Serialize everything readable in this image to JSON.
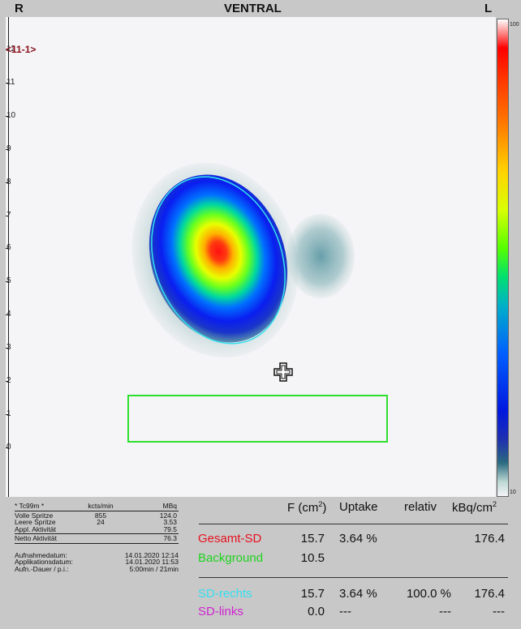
{
  "header": {
    "left": "R",
    "title": "VENTRAL",
    "right": "L"
  },
  "image": {
    "marker": "<11-1>",
    "y_ticks": [
      "12",
      "11",
      "10",
      "9",
      "8",
      "7",
      "6",
      "5",
      "4",
      "3",
      "2",
      "1",
      "0"
    ],
    "colorbar_top_label": "100",
    "colorbar_bottom_label": "10"
  },
  "acquisition": {
    "isotope": "* Tc99m *",
    "col_kcts": "kcts/min",
    "col_mbq": "MBq",
    "rows": [
      {
        "label": "Volle Spritze",
        "kcts": "855",
        "mbq": "124.0"
      },
      {
        "label": "Leere Spritze",
        "kcts": "24",
        "mbq": "3.53"
      },
      {
        "label": "Appl. Aktivität",
        "kcts": "",
        "mbq": "79.5"
      },
      {
        "label": "Netto Aktivität",
        "kcts": "",
        "mbq": "76.3"
      }
    ],
    "dates": [
      {
        "label": "Aufnahmedatum:",
        "value": "14.01.2020 12:14"
      },
      {
        "label": "Applikationsdatum:",
        "value": "14.01.2020 11:53"
      },
      {
        "label": "Aufn.-Dauer / p.i.:",
        "value": "5:00min / 21min"
      }
    ]
  },
  "results": {
    "headers": {
      "f": "F (cm",
      "f_sup": "2",
      "f_close": ")",
      "uptake": "Uptake",
      "relativ": "relativ",
      "kbq": "kBq/cm",
      "kbq_sup": "2"
    },
    "rows": [
      {
        "label": "Gesamt-SD",
        "color": "#e8101e",
        "f": "15.7",
        "uptake": "3.64 %",
        "relativ": "",
        "kbq": "176.4"
      },
      {
        "label": "Background",
        "color": "#1ed31e",
        "f": "10.5",
        "uptake": "",
        "relativ": "",
        "kbq": ""
      },
      {
        "label": "SD-rechts",
        "color": "#33e0f0",
        "f": "15.7",
        "uptake": "3.64 %",
        "relativ": "100.0 %",
        "kbq": "176.4"
      },
      {
        "label": "SD-links",
        "color": "#d024d0",
        "f": "0.0",
        "uptake": "---",
        "relativ": "---",
        "kbq": "---"
      }
    ]
  },
  "colors": {
    "roi_outline": "#33e0f0",
    "background_roi": "#2ee02e"
  }
}
